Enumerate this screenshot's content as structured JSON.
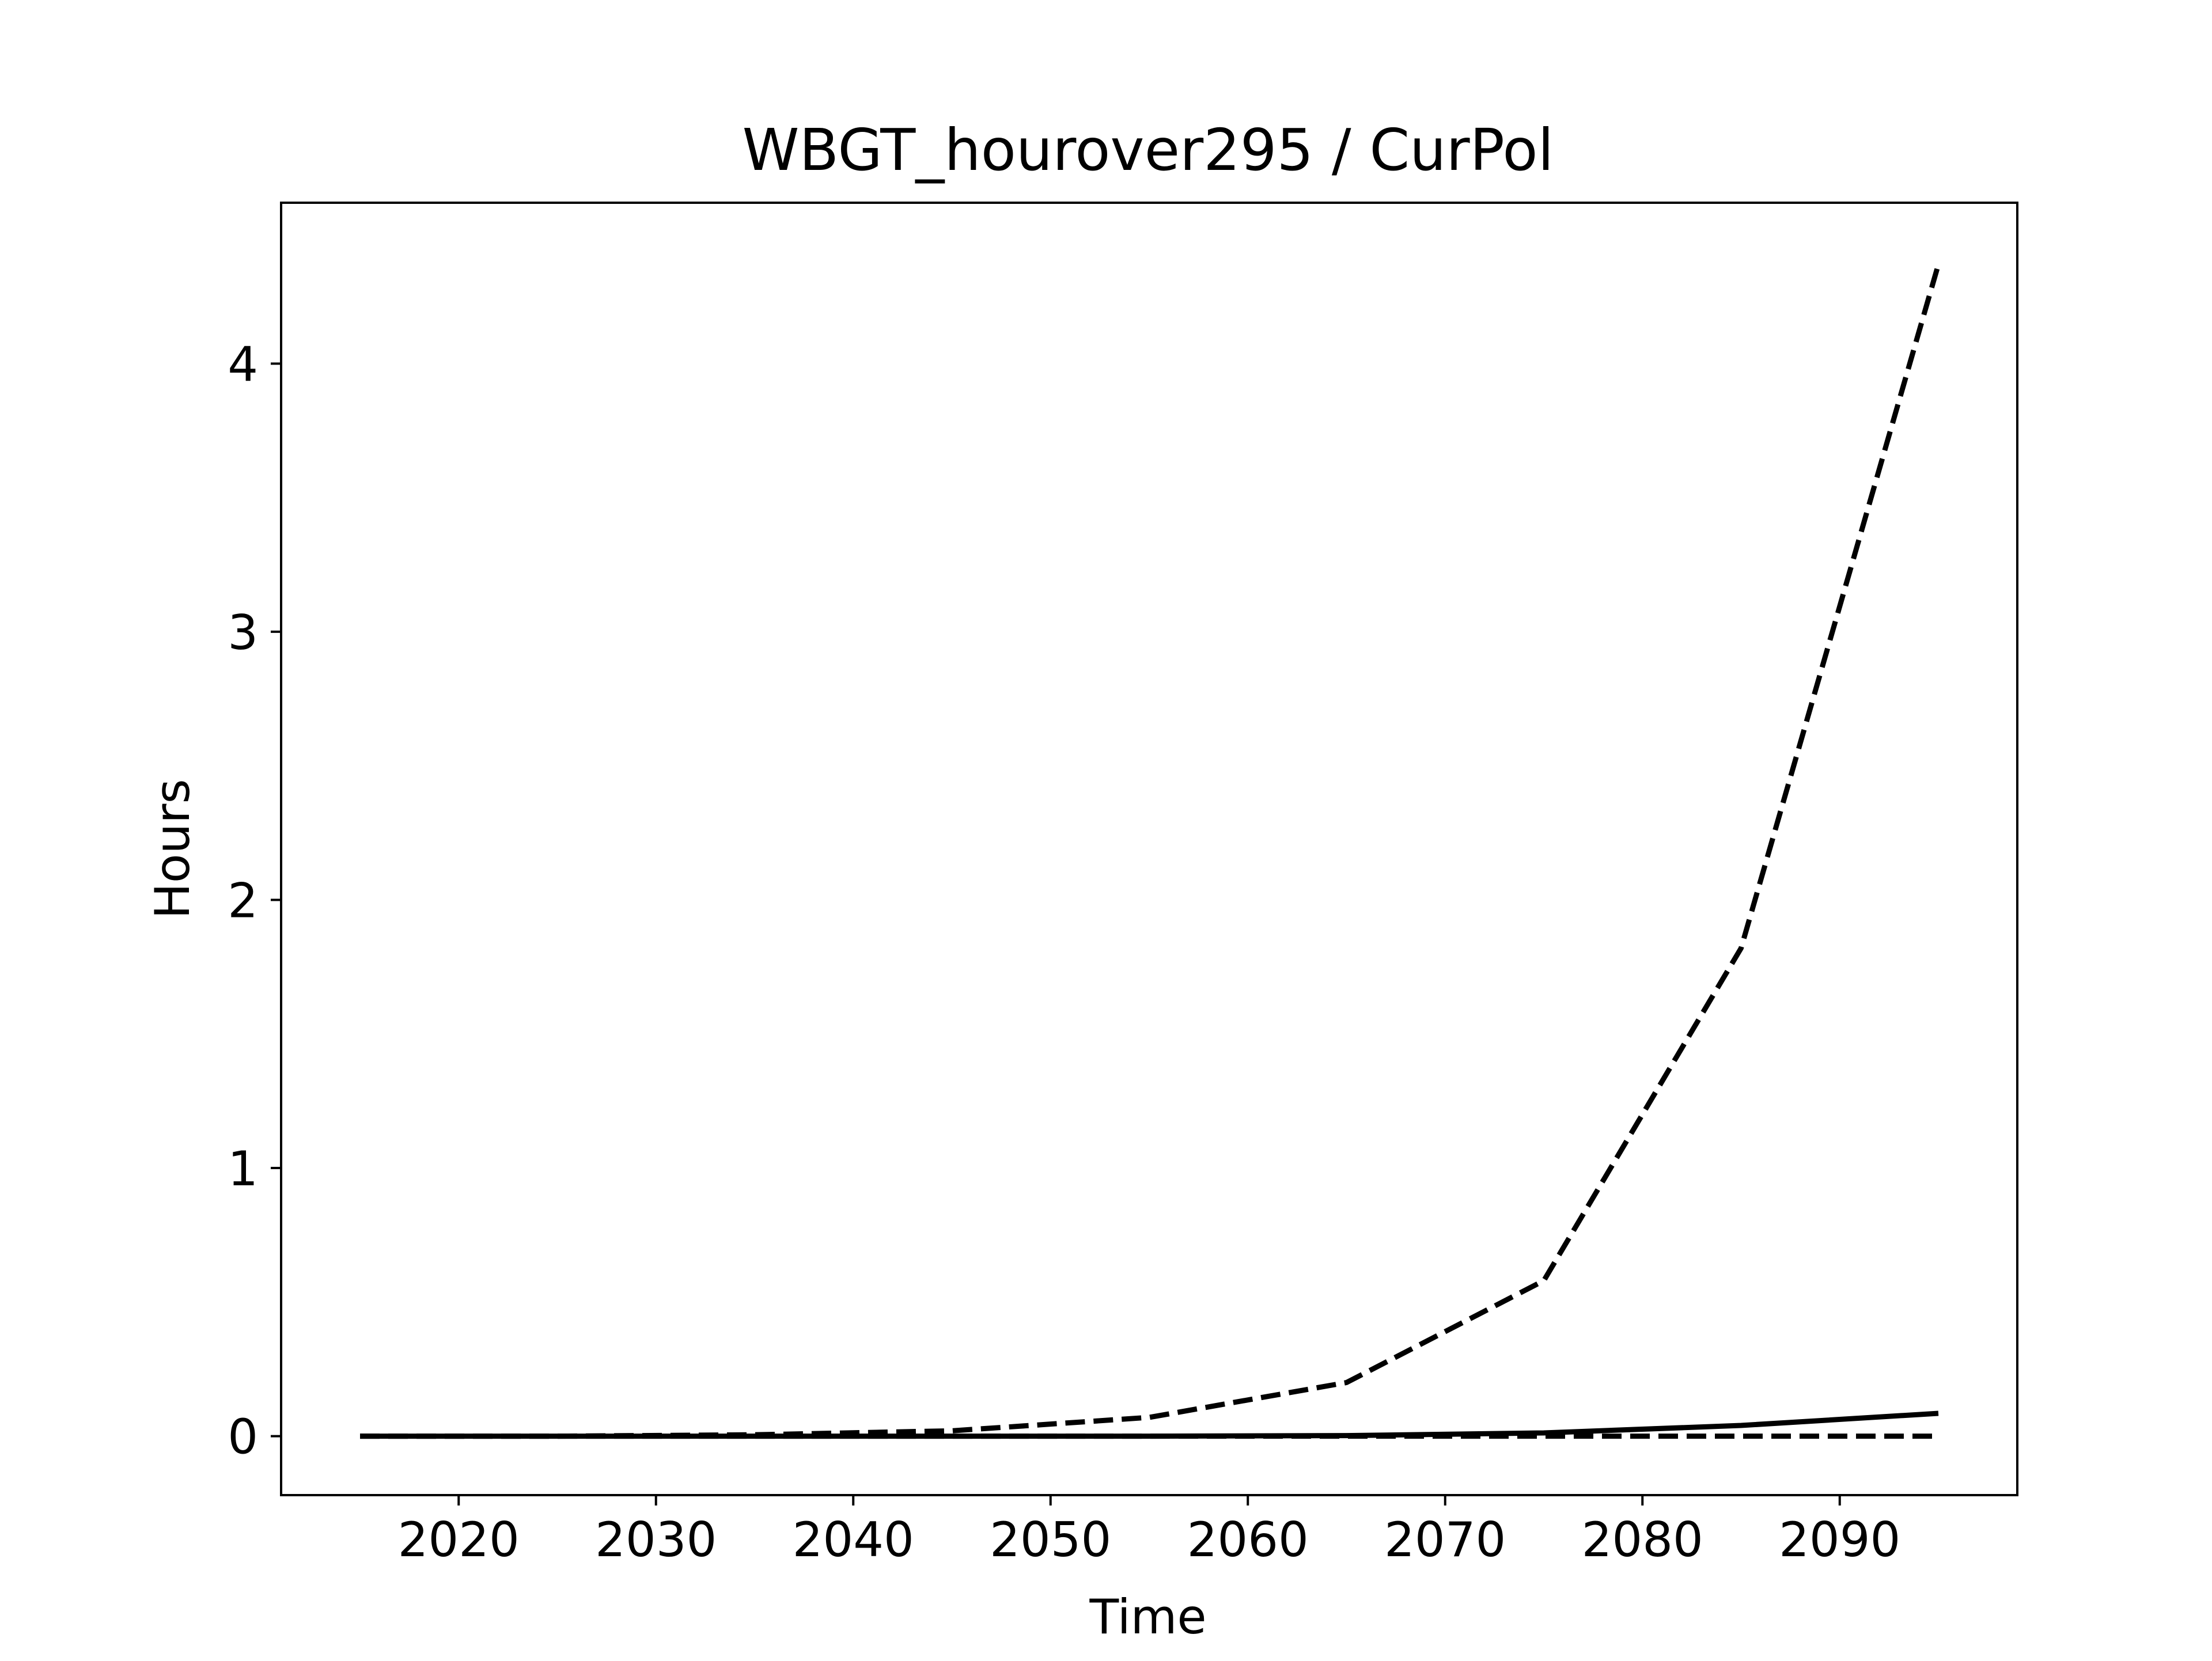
{
  "chart_data": {
    "type": "line",
    "title": "WBGT_hourover295 / CurPol",
    "xlabel": "Time",
    "ylabel": "Hours",
    "xlim": [
      2011,
      2099
    ],
    "ylim": [
      -0.22,
      4.6
    ],
    "xticks": [
      2020,
      2030,
      2040,
      2050,
      2060,
      2070,
      2080,
      2090
    ],
    "yticks": [
      0,
      1,
      2,
      3,
      4
    ],
    "grid": false,
    "legend": "none",
    "series": [
      {
        "style": "dashed",
        "color": "#000000",
        "x": [
          2015,
          2025,
          2035,
          2045,
          2055,
          2065,
          2075,
          2085,
          2095
        ],
        "y": [
          0.0,
          0.0,
          0.005,
          0.02,
          0.07,
          0.2,
          0.58,
          1.82,
          4.37
        ]
      },
      {
        "style": "solid",
        "color": "#000000",
        "x": [
          2015,
          2025,
          2035,
          2045,
          2055,
          2065,
          2075,
          2085,
          2095
        ],
        "y": [
          0.0,
          0.0,
          0.0,
          0.0,
          0.0,
          0.002,
          0.012,
          0.04,
          0.085
        ]
      },
      {
        "style": "dashed",
        "color": "#000000",
        "x": [
          2015,
          2025,
          2035,
          2045,
          2055,
          2065,
          2075,
          2085,
          2095
        ],
        "y": [
          0.0,
          0.0,
          0.0,
          0.0,
          0.0,
          0.0,
          0.0,
          0.0,
          0.0
        ]
      }
    ]
  }
}
